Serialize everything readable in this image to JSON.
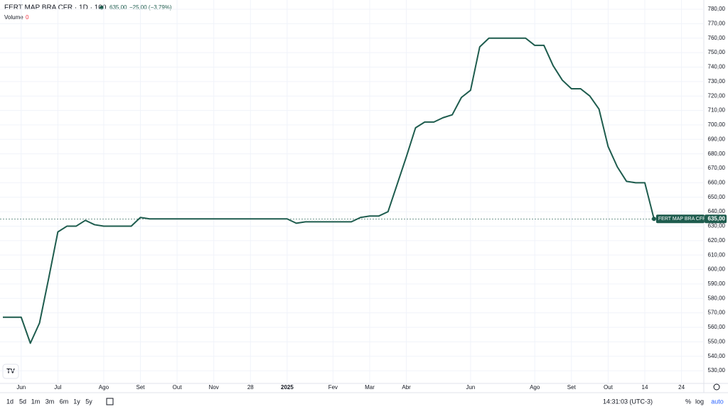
{
  "chart_data": {
    "type": "line",
    "title": "FERT MAP BRA CFR · 1D · 100",
    "last_price": "635,00",
    "change": "−25,00 (−3,79%)",
    "volume_label": "Volume",
    "volume_value": "0",
    "price_tag_name": "FERT MAP BRA CFR",
    "price_tag_value": "635,00",
    "categories": [
      null,
      null,
      "Jun",
      null,
      null,
      null,
      "Jul",
      null,
      null,
      null,
      null,
      "Ago",
      null,
      null,
      null,
      "Set",
      null,
      null,
      null,
      "Out",
      null,
      null,
      null,
      "Nov",
      null,
      null,
      null,
      "28",
      null,
      null,
      null,
      "2025",
      null,
      null,
      null,
      null,
      "Fev",
      null,
      null,
      null,
      "Mar",
      null,
      null,
      null,
      "Abr",
      null,
      null,
      null,
      null,
      null,
      null,
      "Jun",
      null,
      null,
      null,
      null,
      null,
      null,
      "Ago",
      null,
      null,
      null,
      "Set",
      null,
      null,
      null,
      "Out",
      null,
      null,
      null,
      "14",
      null,
      null,
      null,
      "24",
      null,
      null
    ],
    "series": [
      {
        "name": "FERT MAP BRA CFR",
        "color": "#1e5c4e",
        "values": [
          567,
          567,
          567,
          549,
          563,
          594,
          626,
          630,
          630,
          634,
          631,
          630,
          630,
          630,
          630,
          636,
          635,
          635,
          635,
          635,
          635,
          635,
          635,
          635,
          635,
          635,
          635,
          635,
          635,
          635,
          635,
          635,
          632,
          633,
          633,
          633,
          633,
          633,
          633,
          636,
          637,
          637,
          640,
          659,
          678,
          698,
          702,
          702,
          705,
          707,
          719,
          724,
          754,
          760,
          760,
          760,
          760,
          760,
          755,
          755,
          741,
          731,
          725,
          725,
          720,
          711,
          685,
          671,
          661,
          660,
          660,
          635,
          null,
          null,
          null,
          null,
          null
        ]
      }
    ],
    "ylim": [
      521.2,
      786.4
    ],
    "yticks": [
      {
        "value": 530,
        "label": "530,00"
      },
      {
        "value": 540,
        "label": "540,00"
      },
      {
        "value": 550,
        "label": "550,00"
      },
      {
        "value": 560,
        "label": "560,00"
      },
      {
        "value": 570,
        "label": "570,00"
      },
      {
        "value": 580,
        "label": "580,00"
      },
      {
        "value": 590,
        "label": "590,00"
      },
      {
        "value": 600,
        "label": "600,00"
      },
      {
        "value": 610,
        "label": "610,00"
      },
      {
        "value": 620,
        "label": "620,00"
      },
      {
        "value": 630,
        "label": "630,00"
      },
      {
        "value": 640,
        "label": "640,00"
      },
      {
        "value": 650,
        "label": "650,00"
      },
      {
        "value": 660,
        "label": "660,00"
      },
      {
        "value": 670,
        "label": "670,00"
      },
      {
        "value": 680,
        "label": "680,00"
      },
      {
        "value": 690,
        "label": "690,00"
      },
      {
        "value": 700,
        "label": "700,00"
      },
      {
        "value": 710,
        "label": "710,00"
      },
      {
        "value": 720,
        "label": "720,00"
      },
      {
        "value": 730,
        "label": "730,00"
      },
      {
        "value": 740,
        "label": "740,00"
      },
      {
        "value": 750,
        "label": "750,00"
      },
      {
        "value": 760,
        "label": "760,00"
      },
      {
        "value": 770,
        "label": "770,00"
      },
      {
        "value": 780,
        "label": "780,00"
      }
    ],
    "grid": true
  },
  "toolbar": {
    "ranges": [
      "1d",
      "5d",
      "1m",
      "3m",
      "6m",
      "1y",
      "5y"
    ],
    "time": "14:31:03 (UTC-3)",
    "percent": "%",
    "log": "log",
    "auto": "auto"
  }
}
